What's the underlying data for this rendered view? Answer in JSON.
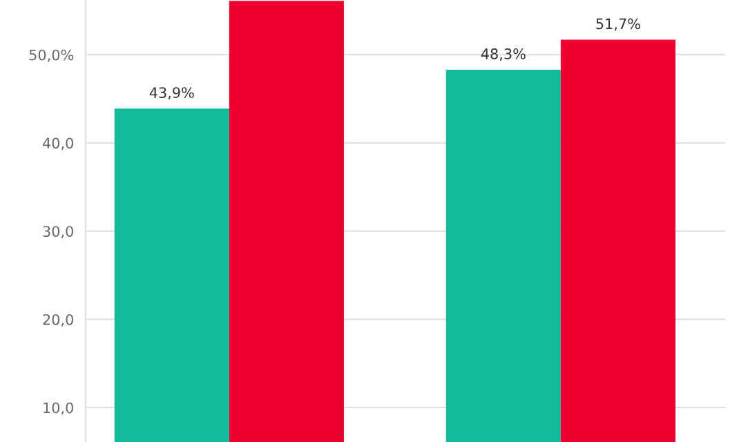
{
  "chart_data": {
    "type": "bar",
    "categories": [
      null,
      null
    ],
    "series": [
      {
        "color": "#0fbb9b",
        "values": [
          43.9,
          48.3
        ],
        "value_labels": [
          "43,9%",
          "48,3%"
        ]
      },
      {
        "color": "#f0002f",
        "values": [
          56.1,
          51.7
        ],
        "value_labels": [
          null,
          "51,7%"
        ]
      }
    ],
    "ylim": [
      6.1,
      56.2
    ],
    "yticks": [
      {
        "value": 10,
        "label": "10,0"
      },
      {
        "value": 20,
        "label": "20,0"
      },
      {
        "value": 30,
        "label": "30,0"
      },
      {
        "value": 40,
        "label": "40,0"
      },
      {
        "value": 50,
        "label": "50,0%"
      }
    ],
    "grid": "y",
    "tick_labels": "y",
    "legend": false
  }
}
